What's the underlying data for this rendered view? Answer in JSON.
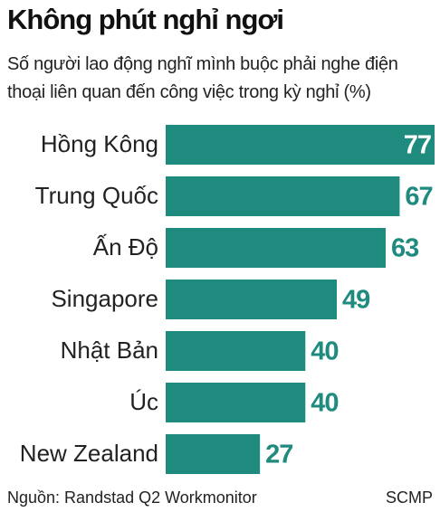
{
  "chart_data": {
    "type": "bar",
    "orientation": "horizontal",
    "title": "Không phút nghỉ ngơi",
    "subtitle": "Số người lao động nghĩ mình buộc phải nghe điện thoại liên quan đến công việc trong kỳ nghỉ (%)",
    "categories": [
      "Hồng Kông",
      "Trung Quốc",
      "Ấn Độ",
      "Singapore",
      "Nhật Bản",
      "Úc",
      "New Zealand"
    ],
    "values": [
      77,
      67,
      63,
      49,
      40,
      40,
      27
    ],
    "color": "#1f8b7e",
    "source": "Nguồn: Randstad Q2 Workmonitor",
    "credit": "SCMP"
  }
}
